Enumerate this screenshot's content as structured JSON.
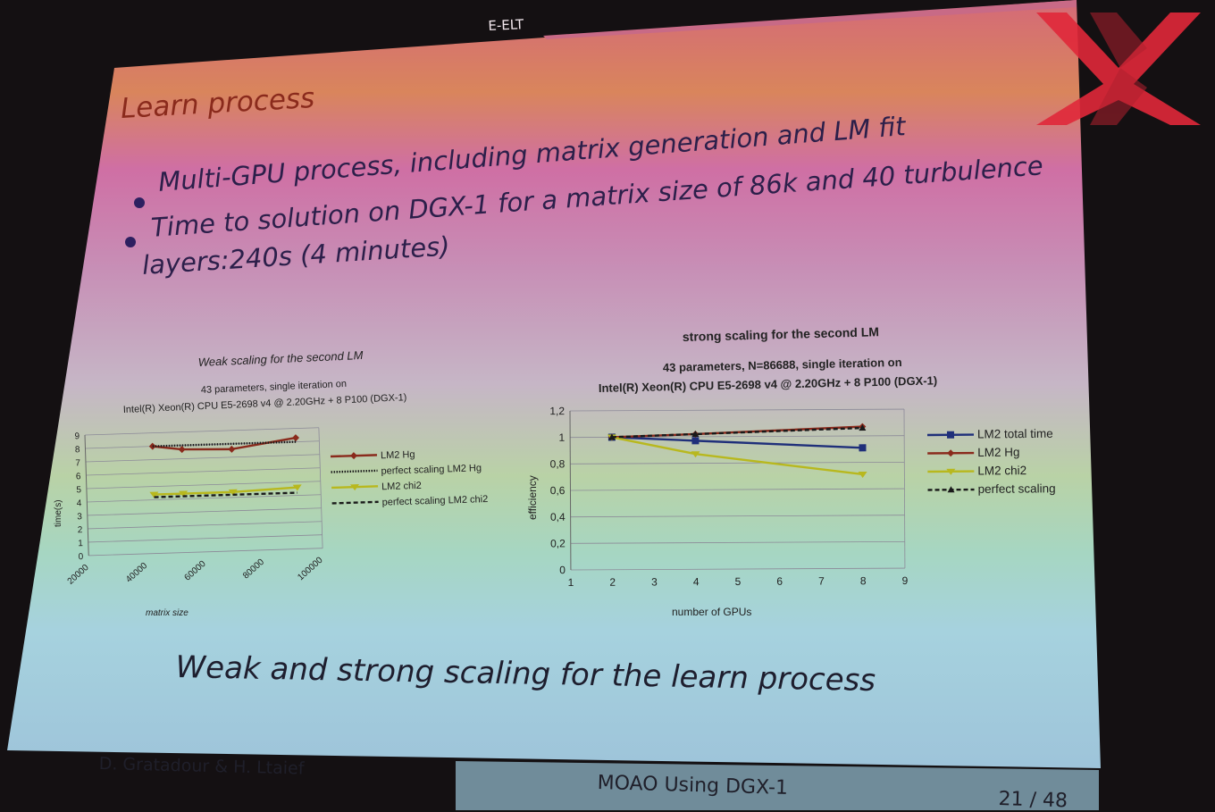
{
  "slide": {
    "header_tag": "E-ELT",
    "title": "Learn process",
    "bullets": [
      "Multi-GPU process, including matrix generation and LM fit",
      "Time to solution on DGX-1 for a matrix size of 86k and 40 turbulence"
    ],
    "bullet2_cont": "layers:240s (4 minutes)",
    "caption": "Weak and strong scaling for the learn process",
    "footer": {
      "authors": "D. Gratadour & H. Ltaief",
      "talk": "MOAO Using DGX-1",
      "page": "21 / 48"
    }
  },
  "colors": {
    "lm2_total": "#1f2f7a",
    "lm2_hg": "#8a2a1c",
    "lm2_chi2": "#b8b81e",
    "perfect": "#1a1a1a",
    "logo": "#e0283a"
  },
  "chart_data": [
    {
      "type": "line",
      "title": "Weak scaling for the second LM",
      "subtitle_lines": [
        "43 parameters, single iteration on",
        "Intel(R) Xeon(R) CPU E5-2698 v4 @ 2.20GHz + 8 P100 (DGX-1)"
      ],
      "xlabel": "matrix size",
      "ylabel": "time(s)",
      "xlim": [
        20000,
        100000
      ],
      "ylim": [
        0,
        9
      ],
      "x_ticks": [
        "20000",
        "40000",
        "60000",
        "80000",
        "100000"
      ],
      "y_ticks": [
        "0",
        "1",
        "2",
        "3",
        "4",
        "5",
        "6",
        "7",
        "8",
        "9"
      ],
      "grid": true,
      "legend": "right",
      "series": [
        {
          "name": "LM2 Hg",
          "color": "#8a2a1c",
          "dash": false,
          "marker": "diamond",
          "x": [
            43000,
            53000,
            70000,
            92000
          ],
          "y": [
            8.0,
            7.7,
            7.6,
            8.3
          ]
        },
        {
          "name": "perfect scaling  LM2 Hg",
          "color": "#1a1a1a",
          "dash": "dot",
          "marker": "none",
          "x": [
            43000,
            53000,
            70000,
            92000
          ],
          "y": [
            8.0,
            8.0,
            8.0,
            8.0
          ]
        },
        {
          "name": "LM2 chi2",
          "color": "#b8b81e",
          "dash": false,
          "marker": "triangle",
          "x": [
            43000,
            53000,
            70000,
            92000
          ],
          "y": [
            4.4,
            4.4,
            4.4,
            4.6
          ]
        },
        {
          "name": "perfect scaling  LM2 chi2",
          "color": "#1a1a1a",
          "dash": "dash",
          "marker": "none",
          "x": [
            43000,
            53000,
            70000,
            92000
          ],
          "y": [
            4.2,
            4.2,
            4.2,
            4.2
          ]
        }
      ]
    },
    {
      "type": "line",
      "title": "strong scaling for the second LM",
      "subtitle_lines": [
        "43 parameters, N=86688, single iteration on",
        "Intel(R) Xeon(R) CPU E5-2698 v4 @ 2.20GHz + 8 P100 (DGX-1)"
      ],
      "xlabel": "number of GPUs",
      "ylabel": "efficiency",
      "xlim": [
        1,
        9
      ],
      "ylim": [
        0,
        1.2
      ],
      "x_ticks": [
        "1",
        "2",
        "3",
        "4",
        "5",
        "6",
        "7",
        "8",
        "9"
      ],
      "y_ticks": [
        "0",
        "0,2",
        "0,4",
        "0,6",
        "0,8",
        "1",
        "1,2"
      ],
      "grid": true,
      "legend": "right",
      "series": [
        {
          "name": "LM2 total time",
          "color": "#1f2f7a",
          "dash": false,
          "marker": "square",
          "x": [
            2,
            4,
            8
          ],
          "y": [
            1.0,
            0.97,
            0.91
          ]
        },
        {
          "name": "LM2 Hg",
          "color": "#8a2a1c",
          "dash": false,
          "marker": "diamond",
          "x": [
            2,
            4,
            8
          ],
          "y": [
            1.0,
            1.02,
            1.07
          ]
        },
        {
          "name": "LM2 chi2",
          "color": "#b8b81e",
          "dash": false,
          "marker": "triangle",
          "x": [
            2,
            4,
            8
          ],
          "y": [
            1.0,
            0.87,
            0.71
          ]
        },
        {
          "name": "perfect scaling",
          "color": "#1a1a1a",
          "dash": "dash",
          "marker": "triangle-up",
          "x": [
            2,
            4,
            8
          ],
          "y": [
            1.0,
            1.02,
            1.06
          ]
        }
      ]
    }
  ]
}
